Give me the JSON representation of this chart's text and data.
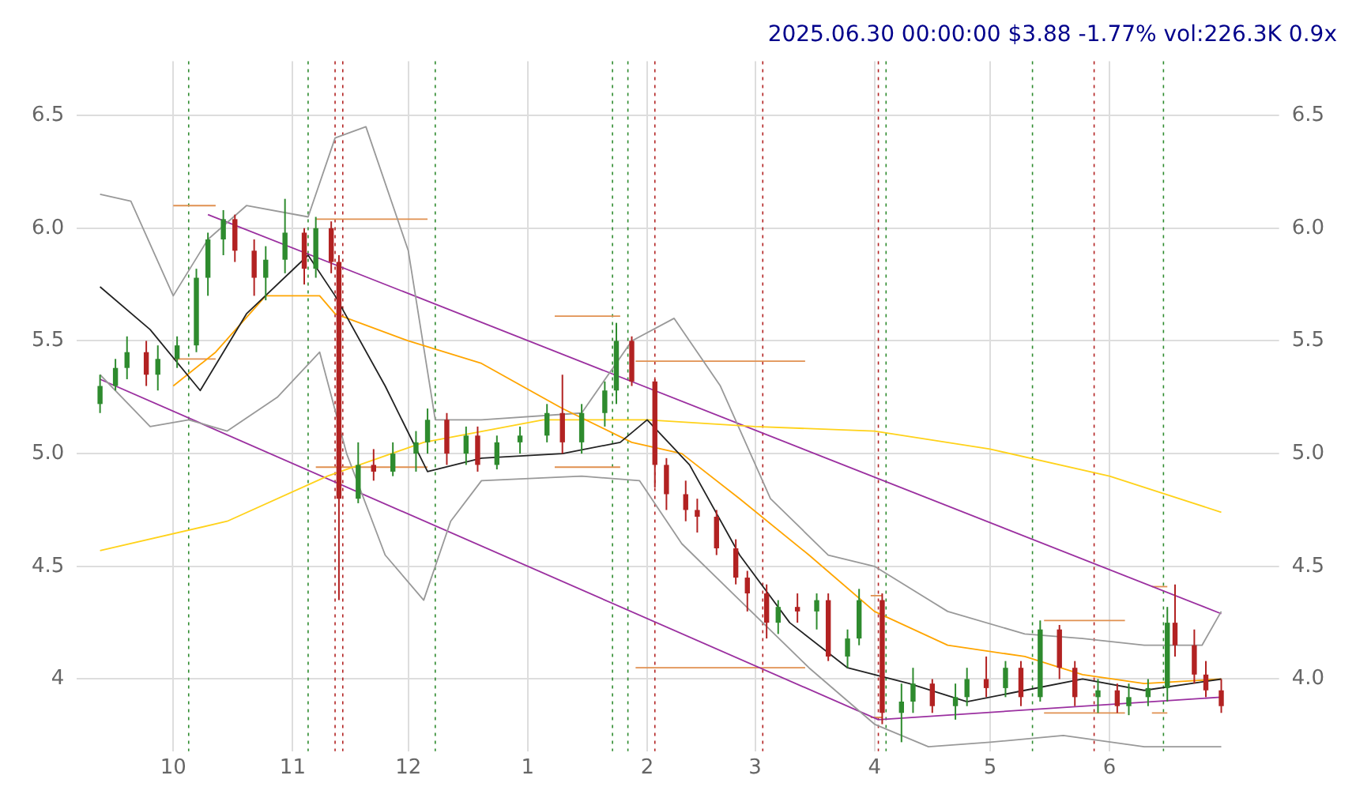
{
  "chart_data": {
    "type": "candlestick",
    "title": "2025.06.30 00:00:00 $3.88 -1.77% vol:226.3K 0.9x",
    "xlim": [
      "2024-09-06",
      "2025-07-15"
    ],
    "xticks": [
      {
        "value": "2024-10-01",
        "label": "10"
      },
      {
        "value": "2024-11-01",
        "label": "11"
      },
      {
        "value": "2024-12-01",
        "label": "12"
      },
      {
        "value": "2025-01-01",
        "label": "1"
      },
      {
        "value": "2025-02-01",
        "label": "2"
      },
      {
        "value": "2025-03-01",
        "label": "3"
      },
      {
        "value": "2025-04-01",
        "label": "4"
      },
      {
        "value": "2025-05-01",
        "label": "5"
      },
      {
        "value": "2025-06-01",
        "label": "6"
      }
    ],
    "ylim": [
      3.68,
      6.74
    ],
    "yticks": [
      4.0,
      {
        "value": 4.5,
        "label": "4.5"
      },
      {
        "value": 5.0,
        "label": "5.0"
      },
      {
        "value": 5.5,
        "label": "5.5"
      },
      {
        "value": 6.0,
        "label": "6.0"
      },
      {
        "value": 6.5,
        "label": "6.5"
      }
    ],
    "y2lim": [
      3.68,
      6.74
    ],
    "y2ticks": [
      {
        "value": 4.0,
        "label": "4.0"
      },
      {
        "value": 4.5,
        "label": "4.5"
      },
      {
        "value": 5.0,
        "label": "5.0"
      },
      {
        "value": 5.5,
        "label": "5.5"
      },
      {
        "value": 6.0,
        "label": "6.0"
      },
      {
        "value": 6.5,
        "label": "6.5"
      }
    ],
    "grid": true,
    "legend": false,
    "series": [
      {
        "x": [
          "2024-09-12",
          "2024-09-16",
          "2024-09-19",
          "2024-09-24",
          "2024-09-27",
          "2024-10-02",
          "2024-10-07",
          "2024-10-10",
          "2024-10-14",
          "2024-10-17",
          "2024-10-22",
          "2024-10-25",
          "2024-10-30",
          "2024-11-04",
          "2024-11-07",
          "2024-11-11",
          "2024-11-13",
          "2024-11-18",
          "2024-11-22",
          "2024-11-27",
          "2024-12-03",
          "2024-12-06",
          "2024-12-11",
          "2024-12-16",
          "2024-12-19",
          "2024-12-24",
          "2024-12-30",
          "2025-01-06",
          "2025-01-10",
          "2025-01-15",
          "2025-01-21",
          "2025-01-24",
          "2025-01-28",
          "2025-02-03",
          "2025-02-06",
          "2025-02-11",
          "2025-02-14",
          "2025-02-19",
          "2025-02-24",
          "2025-02-27",
          "2025-03-04",
          "2025-03-07",
          "2025-03-12",
          "2025-03-17",
          "2025-03-20",
          "2025-03-25",
          "2025-03-28",
          "2025-04-03",
          "2025-04-08",
          "2025-04-11",
          "2025-04-16",
          "2025-04-22",
          "2025-04-25",
          "2025-04-30",
          "2025-05-05",
          "2025-05-09",
          "2025-05-14",
          "2025-05-19",
          "2025-05-23",
          "2025-05-29",
          "2025-06-03",
          "2025-06-06",
          "2025-06-11",
          "2025-06-16",
          "2025-06-18",
          "2025-06-23",
          "2025-06-26",
          "2025-06-30"
        ],
        "ohlc": [
          [
            5.22,
            5.35,
            5.18,
            5.3
          ],
          [
            5.3,
            5.42,
            5.28,
            5.38
          ],
          [
            5.38,
            5.52,
            5.33,
            5.45
          ],
          [
            5.45,
            5.5,
            5.3,
            5.35
          ],
          [
            5.35,
            5.48,
            5.28,
            5.42
          ],
          [
            5.42,
            5.52,
            5.38,
            5.48
          ],
          [
            5.48,
            5.82,
            5.45,
            5.78
          ],
          [
            5.78,
            5.98,
            5.7,
            5.95
          ],
          [
            5.95,
            6.08,
            5.88,
            6.04
          ],
          [
            6.04,
            6.06,
            5.85,
            5.9
          ],
          [
            5.9,
            5.95,
            5.7,
            5.78
          ],
          [
            5.78,
            5.92,
            5.68,
            5.86
          ],
          [
            5.86,
            6.13,
            5.8,
            5.98
          ],
          [
            5.98,
            6.0,
            5.75,
            5.82
          ],
          [
            5.82,
            6.05,
            5.78,
            6.0
          ],
          [
            6.0,
            6.03,
            5.8,
            5.85
          ],
          [
            5.85,
            5.88,
            4.35,
            4.8
          ],
          [
            4.8,
            5.05,
            4.78,
            4.95
          ],
          [
            4.95,
            5.02,
            4.88,
            4.92
          ],
          [
            4.92,
            5.05,
            4.9,
            5.0
          ],
          [
            5.0,
            5.1,
            4.92,
            5.05
          ],
          [
            5.05,
            5.2,
            5.0,
            5.15
          ],
          [
            5.15,
            5.18,
            4.95,
            5.0
          ],
          [
            5.0,
            5.12,
            4.95,
            5.08
          ],
          [
            5.08,
            5.12,
            4.92,
            4.95
          ],
          [
            4.95,
            5.08,
            4.93,
            5.05
          ],
          [
            5.05,
            5.12,
            5.0,
            5.08
          ],
          [
            5.08,
            5.22,
            5.05,
            5.18
          ],
          [
            5.18,
            5.35,
            5.0,
            5.05
          ],
          [
            5.05,
            5.22,
            5.0,
            5.18
          ],
          [
            5.18,
            5.32,
            5.12,
            5.28
          ],
          [
            5.28,
            5.58,
            5.22,
            5.5
          ],
          [
            5.5,
            5.52,
            5.3,
            5.32
          ],
          [
            5.32,
            5.33,
            4.85,
            4.95
          ],
          [
            4.95,
            4.98,
            4.75,
            4.82
          ],
          [
            4.82,
            4.88,
            4.7,
            4.75
          ],
          [
            4.75,
            4.8,
            4.65,
            4.72
          ],
          [
            4.72,
            4.75,
            4.55,
            4.58
          ],
          [
            4.58,
            4.62,
            4.42,
            4.45
          ],
          [
            4.45,
            4.48,
            4.3,
            4.38
          ],
          [
            4.38,
            4.42,
            4.18,
            4.25
          ],
          [
            4.25,
            4.35,
            4.2,
            4.32
          ],
          [
            4.32,
            4.38,
            4.25,
            4.3
          ],
          [
            4.3,
            4.38,
            4.22,
            4.35
          ],
          [
            4.35,
            4.38,
            4.08,
            4.1
          ],
          [
            4.1,
            4.22,
            4.05,
            4.18
          ],
          [
            4.18,
            4.4,
            4.15,
            4.35
          ],
          [
            4.35,
            4.38,
            3.8,
            3.85
          ],
          [
            3.85,
            3.98,
            3.72,
            3.9
          ],
          [
            3.9,
            4.05,
            3.85,
            3.98
          ],
          [
            3.98,
            4.0,
            3.85,
            3.88
          ],
          [
            3.88,
            3.98,
            3.82,
            3.92
          ],
          [
            3.92,
            4.05,
            3.88,
            4.0
          ],
          [
            4.0,
            4.1,
            3.92,
            3.96
          ],
          [
            3.96,
            4.08,
            3.92,
            4.05
          ],
          [
            4.05,
            4.08,
            3.88,
            3.92
          ],
          [
            3.92,
            4.26,
            3.9,
            4.22
          ],
          [
            4.22,
            4.24,
            4.0,
            4.05
          ],
          [
            4.05,
            4.08,
            3.88,
            3.92
          ],
          [
            3.92,
            4.0,
            3.85,
            3.95
          ],
          [
            3.95,
            3.98,
            3.85,
            3.88
          ],
          [
            3.88,
            3.98,
            3.84,
            3.92
          ],
          [
            3.92,
            4.0,
            3.88,
            3.96
          ],
          [
            3.96,
            4.32,
            3.9,
            4.25
          ],
          [
            4.25,
            4.42,
            4.1,
            4.15
          ],
          [
            4.15,
            4.22,
            3.98,
            4.02
          ],
          [
            4.02,
            4.08,
            3.92,
            3.95
          ],
          [
            3.95,
            4.0,
            3.85,
            3.88
          ]
        ],
        "colors": [
          "#2e8b2e",
          "#2e8b2e",
          "#2e8b2e",
          "#b22222",
          "#2e8b2e",
          "#2e8b2e",
          "#2e8b2e",
          "#2e8b2e",
          "#2e8b2e",
          "#b22222",
          "#b22222",
          "#2e8b2e",
          "#2e8b2e",
          "#b22222",
          "#2e8b2e",
          "#b22222",
          "#b22222",
          "#2e8b2e",
          "#b22222",
          "#2e8b2e",
          "#2e8b2e",
          "#2e8b2e",
          "#b22222",
          "#2e8b2e",
          "#b22222",
          "#2e8b2e",
          "#2e8b2e",
          "#2e8b2e",
          "#b22222",
          "#2e8b2e",
          "#2e8b2e",
          "#2e8b2e",
          "#b22222",
          "#b22222",
          "#b22222",
          "#b22222",
          "#b22222",
          "#b22222",
          "#b22222",
          "#b22222",
          "#b22222",
          "#2e8b2e",
          "#b22222",
          "#2e8b2e",
          "#b22222",
          "#2e8b2e",
          "#2e8b2e",
          "#b22222",
          "#2e8b2e",
          "#2e8b2e",
          "#b22222",
          "#2e8b2e",
          "#2e8b2e",
          "#b22222",
          "#2e8b2e",
          "#b22222",
          "#2e8b2e",
          "#b22222",
          "#b22222",
          "#2e8b2e",
          "#b22222",
          "#2e8b2e",
          "#2e8b2e",
          "#2e8b2e",
          "#b22222",
          "#b22222",
          "#b22222",
          "#b22222"
        ]
      },
      {
        "type": "line",
        "color": "#222222",
        "x": [
          "2024-09-12",
          "2024-09-25",
          "2024-10-08",
          "2024-10-20",
          "2024-11-05",
          "2024-11-12",
          "2024-11-25",
          "2024-12-06",
          "2024-12-20",
          "2025-01-10",
          "2025-01-25",
          "2025-02-01",
          "2025-02-12",
          "2025-02-25",
          "2025-03-10",
          "2025-03-25",
          "2025-04-10",
          "2025-04-25",
          "2025-05-10",
          "2025-05-25",
          "2025-06-10",
          "2025-06-30"
        ],
        "values": [
          5.74,
          5.55,
          5.28,
          5.62,
          5.88,
          5.7,
          5.3,
          4.92,
          4.98,
          5.0,
          5.05,
          5.15,
          4.95,
          4.55,
          4.25,
          4.05,
          3.98,
          3.9,
          3.95,
          4.0,
          3.95,
          4.0
        ]
      },
      {
        "type": "line",
        "color": "#ffa500",
        "x": [
          "2024-10-01",
          "2024-10-12",
          "2024-10-25",
          "2024-11-08",
          "2024-11-12",
          "2024-12-01",
          "2024-12-20",
          "2025-01-10",
          "2025-01-28",
          "2025-02-10",
          "2025-02-25",
          "2025-03-15",
          "2025-04-01",
          "2025-04-20",
          "2025-05-10",
          "2025-05-25",
          "2025-06-10",
          "2025-06-30"
        ],
        "values": [
          5.3,
          5.45,
          5.7,
          5.7,
          5.62,
          5.5,
          5.4,
          5.2,
          5.05,
          5.0,
          4.8,
          4.55,
          4.3,
          4.15,
          4.1,
          4.02,
          3.98,
          4.0
        ]
      },
      {
        "type": "line",
        "color": "#ffd21a",
        "x": [
          "2024-09-12",
          "2024-10-15",
          "2024-11-10",
          "2024-12-05",
          "2025-01-05",
          "2025-02-01",
          "2025-03-01",
          "2025-04-01",
          "2025-05-01",
          "2025-06-01",
          "2025-06-30"
        ],
        "values": [
          4.57,
          4.7,
          4.9,
          5.05,
          5.15,
          5.15,
          5.12,
          5.1,
          5.02,
          4.9,
          4.74
        ]
      },
      {
        "type": "line",
        "color": "#999999",
        "x": [
          "2024-09-12",
          "2024-09-20",
          "2024-10-01",
          "2024-10-10",
          "2024-10-20",
          "2024-11-05",
          "2024-11-12",
          "2024-11-20",
          "2024-12-01",
          "2024-12-08",
          "2024-12-20",
          "2025-01-15",
          "2025-01-28",
          "2025-02-08",
          "2025-02-20",
          "2025-03-05",
          "2025-03-20",
          "2025-04-01",
          "2025-04-20",
          "2025-05-10",
          "2025-05-25",
          "2025-06-10",
          "2025-06-25",
          "2025-06-30"
        ],
        "values": [
          6.15,
          6.12,
          5.7,
          5.95,
          6.1,
          6.05,
          6.4,
          6.45,
          5.9,
          5.15,
          5.15,
          5.18,
          5.5,
          5.6,
          5.3,
          4.8,
          4.55,
          4.5,
          4.3,
          4.2,
          4.18,
          4.15,
          4.15,
          4.3
        ]
      },
      {
        "type": "line",
        "color": "#999999",
        "x": [
          "2024-09-12",
          "2024-09-25",
          "2024-10-05",
          "2024-10-15",
          "2024-10-28",
          "2024-11-08",
          "2024-11-15",
          "2024-11-25",
          "2024-12-05",
          "2024-12-12",
          "2024-12-20",
          "2025-01-15",
          "2025-01-30",
          "2025-02-10",
          "2025-02-25",
          "2025-03-15",
          "2025-04-01",
          "2025-04-15",
          "2025-05-01",
          "2025-05-20",
          "2025-06-10",
          "2025-06-30"
        ],
        "values": [
          5.35,
          5.12,
          5.15,
          5.1,
          5.25,
          5.45,
          5.0,
          4.55,
          4.35,
          4.7,
          4.88,
          4.9,
          4.88,
          4.6,
          4.35,
          4.05,
          3.8,
          3.7,
          3.72,
          3.75,
          3.7,
          3.7
        ]
      },
      {
        "type": "line",
        "color": "#9b30a0",
        "x": [
          "2024-10-10",
          "2025-06-30"
        ],
        "values": [
          6.06,
          4.29
        ]
      },
      {
        "type": "line",
        "color": "#9b30a0",
        "x": [
          "2024-09-12",
          "2025-04-02"
        ],
        "values": [
          5.33,
          3.82
        ]
      },
      {
        "type": "line",
        "color": "#9b30a0",
        "x": [
          "2025-04-02",
          "2025-06-30"
        ],
        "values": [
          3.82,
          3.92
        ]
      },
      {
        "type": "line",
        "color": "#e09050",
        "x": [
          "2024-10-01",
          "2024-10-12"
        ],
        "values": [
          6.1,
          6.1
        ]
      },
      {
        "type": "line",
        "color": "#e09050",
        "x": [
          "2024-10-01",
          "2024-10-12"
        ],
        "values": [
          5.42,
          5.42
        ]
      },
      {
        "type": "line",
        "color": "#e09050",
        "x": [
          "2024-11-07",
          "2024-12-06"
        ],
        "values": [
          6.04,
          6.04
        ]
      },
      {
        "type": "line",
        "color": "#e09050",
        "x": [
          "2024-11-07",
          "2024-12-06"
        ],
        "values": [
          4.94,
          4.94
        ]
      },
      {
        "type": "line",
        "color": "#e09050",
        "x": [
          "2025-01-08",
          "2025-01-25"
        ],
        "values": [
          5.61,
          5.61
        ]
      },
      {
        "type": "line",
        "color": "#e09050",
        "x": [
          "2025-01-08",
          "2025-01-25"
        ],
        "values": [
          4.94,
          4.94
        ]
      },
      {
        "type": "line",
        "color": "#e09050",
        "x": [
          "2025-01-29",
          "2025-03-14"
        ],
        "values": [
          5.41,
          5.41
        ]
      },
      {
        "type": "line",
        "color": "#e09050",
        "x": [
          "2025-01-29",
          "2025-03-14"
        ],
        "values": [
          4.05,
          4.05
        ]
      },
      {
        "type": "line",
        "color": "#e09050",
        "x": [
          "2025-05-15",
          "2025-06-05"
        ],
        "values": [
          4.26,
          4.26
        ]
      },
      {
        "type": "line",
        "color": "#e09050",
        "x": [
          "2025-05-15",
          "2025-06-05"
        ],
        "values": [
          3.85,
          3.85
        ]
      },
      {
        "type": "line",
        "color": "#e09050",
        "x": [
          "2025-03-31",
          "2025-04-03"
        ],
        "values": [
          4.37,
          4.37
        ]
      },
      {
        "type": "line",
        "color": "#e09050",
        "x": [
          "2025-03-31",
          "2025-04-03"
        ],
        "values": [
          3.83,
          3.83
        ]
      },
      {
        "type": "line",
        "color": "#e09050",
        "x": [
          "2025-06-12",
          "2025-06-16"
        ],
        "values": [
          4.41,
          4.41
        ]
      },
      {
        "type": "line",
        "color": "#e09050",
        "x": [
          "2025-06-12",
          "2025-06-16"
        ],
        "values": [
          3.85,
          3.85
        ]
      }
    ],
    "ref_lines": [
      {
        "axis": "x",
        "value": "2024-10-05",
        "color": "#2e8b2e",
        "line_style": "dotted"
      },
      {
        "axis": "x",
        "value": "2024-11-05",
        "color": "#2e8b2e",
        "line_style": "dotted"
      },
      {
        "axis": "x",
        "value": "2024-11-12",
        "color": "#b22222",
        "line_style": "dotted"
      },
      {
        "axis": "x",
        "value": "2024-11-14",
        "color": "#b22222",
        "line_style": "dotted"
      },
      {
        "axis": "x",
        "value": "2024-12-08",
        "color": "#2e8b2e",
        "line_style": "dotted"
      },
      {
        "axis": "x",
        "value": "2025-01-23",
        "color": "#2e8b2e",
        "line_style": "dotted"
      },
      {
        "axis": "x",
        "value": "2025-01-27",
        "color": "#2e8b2e",
        "line_style": "dotted"
      },
      {
        "axis": "x",
        "value": "2025-02-03",
        "color": "#b22222",
        "line_style": "dotted"
      },
      {
        "axis": "x",
        "value": "2025-03-03",
        "color": "#b22222",
        "line_style": "dotted"
      },
      {
        "axis": "x",
        "value": "2025-04-02",
        "color": "#b22222",
        "line_style": "dotted"
      },
      {
        "axis": "x",
        "value": "2025-04-04",
        "color": "#2e8b2e",
        "line_style": "dotted"
      },
      {
        "axis": "x",
        "value": "2025-05-12",
        "color": "#2e8b2e",
        "line_style": "dotted"
      },
      {
        "axis": "x",
        "value": "2025-05-28",
        "color": "#b22222",
        "line_style": "dotted"
      },
      {
        "axis": "x",
        "value": "2025-06-15",
        "color": "#2e8b2e",
        "line_style": "dotted"
      }
    ]
  }
}
